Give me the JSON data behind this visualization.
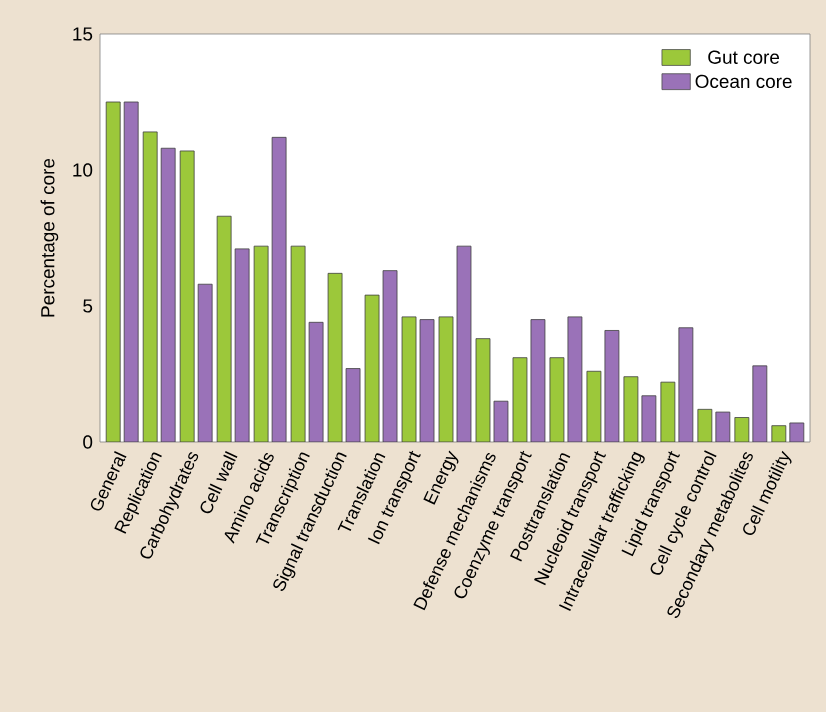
{
  "chart_data": {
    "type": "bar",
    "ylabel": "Percentage of core",
    "categories": [
      "General",
      "Replication",
      "Carbohydrates",
      "Cell wall",
      "Amino acids",
      "Transcription",
      "Signal transduction",
      "Translation",
      "Ion transport",
      "Energy",
      "Defense mechanisms",
      "Coenzyme transport",
      "Posttranslation",
      "Nucleoid transport",
      "Intracellular trafficking",
      "Lipid transport",
      "Cell cycle control",
      "Secondary metabolites",
      "Cell motility"
    ],
    "series": [
      {
        "name": "Gut core",
        "color": "#9cc83a",
        "values": [
          12.5,
          11.4,
          10.7,
          8.3,
          7.2,
          7.2,
          6.2,
          5.4,
          4.6,
          4.6,
          3.8,
          3.1,
          3.1,
          2.6,
          2.4,
          2.2,
          1.2,
          0.9,
          0.6
        ]
      },
      {
        "name": "Ocean core",
        "color": "#9a72b8",
        "values": [
          12.5,
          10.8,
          5.8,
          7.1,
          11.2,
          4.4,
          2.7,
          6.3,
          4.5,
          7.2,
          1.5,
          4.5,
          4.6,
          4.1,
          1.7,
          4.2,
          1.1,
          2.8,
          0.7
        ]
      }
    ],
    "ylim": [
      0,
      15
    ],
    "yticks": [
      0,
      5,
      10,
      15
    ],
    "legend": "top right",
    "grid": false
  }
}
